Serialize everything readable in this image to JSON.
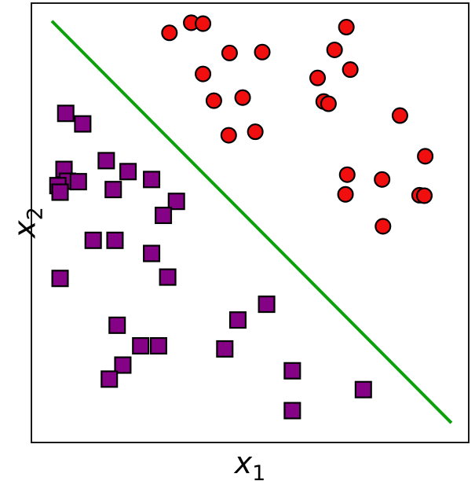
{
  "figure": {
    "background": "#ffffff",
    "frame_color": "#1a1a1a"
  },
  "chart_data": {
    "type": "scatter",
    "title": "",
    "xlabel": "x1",
    "ylabel": "x2",
    "xlabel_parts": {
      "base": "x",
      "sub": "1"
    },
    "ylabel_parts": {
      "base": "x",
      "sub": "2"
    },
    "axes": {
      "x_range": [
        0,
        1
      ],
      "y_range": [
        0,
        1
      ],
      "ticks": "none",
      "grid": false,
      "legend": "none"
    },
    "series": [
      {
        "name": "class-red-circles",
        "marker": "circle",
        "fill_color": "#f10e0e",
        "edge_color": "#000000",
        "marker_size": 19,
        "points": [
          [
            0.315,
            0.934
          ],
          [
            0.365,
            0.957
          ],
          [
            0.392,
            0.955
          ],
          [
            0.453,
            0.888
          ],
          [
            0.528,
            0.89
          ],
          [
            0.392,
            0.84
          ],
          [
            0.417,
            0.779
          ],
          [
            0.483,
            0.786
          ],
          [
            0.451,
            0.7
          ],
          [
            0.512,
            0.708
          ],
          [
            0.721,
            0.947
          ],
          [
            0.694,
            0.895
          ],
          [
            0.73,
            0.85
          ],
          [
            0.655,
            0.831
          ],
          [
            0.669,
            0.777
          ],
          [
            0.68,
            0.772
          ],
          [
            0.844,
            0.745
          ],
          [
            0.902,
            0.652
          ],
          [
            0.723,
            0.61
          ],
          [
            0.803,
            0.599
          ],
          [
            0.719,
            0.565
          ],
          [
            0.889,
            0.563
          ],
          [
            0.9,
            0.562
          ],
          [
            0.805,
            0.492
          ]
        ]
      },
      {
        "name": "class-purple-squares",
        "marker": "square",
        "fill_color": "#850185",
        "edge_color": "#000000",
        "marker_size": 20,
        "points": [
          [
            0.077,
            0.75
          ],
          [
            0.116,
            0.726
          ],
          [
            0.17,
            0.642
          ],
          [
            0.22,
            0.617
          ],
          [
            0.073,
            0.622
          ],
          [
            0.081,
            0.595
          ],
          [
            0.106,
            0.594
          ],
          [
            0.059,
            0.585
          ],
          [
            0.064,
            0.57
          ],
          [
            0.186,
            0.576
          ],
          [
            0.274,
            0.599
          ],
          [
            0.331,
            0.549
          ],
          [
            0.301,
            0.517
          ],
          [
            0.14,
            0.46
          ],
          [
            0.19,
            0.46
          ],
          [
            0.274,
            0.43
          ],
          [
            0.064,
            0.373
          ],
          [
            0.311,
            0.376
          ],
          [
            0.195,
            0.266
          ],
          [
            0.249,
            0.219
          ],
          [
            0.29,
            0.219
          ],
          [
            0.208,
            0.175
          ],
          [
            0.177,
            0.143
          ],
          [
            0.472,
            0.278
          ],
          [
            0.442,
            0.212
          ],
          [
            0.538,
            0.314
          ],
          [
            0.597,
            0.162
          ],
          [
            0.76,
            0.119
          ],
          [
            0.597,
            0.071
          ]
        ]
      }
    ],
    "decision_boundary": {
      "type": "line",
      "color": "#0aa10a",
      "width": 4,
      "from": [
        0.045,
        0.961
      ],
      "to": [
        0.962,
        0.043
      ]
    }
  }
}
